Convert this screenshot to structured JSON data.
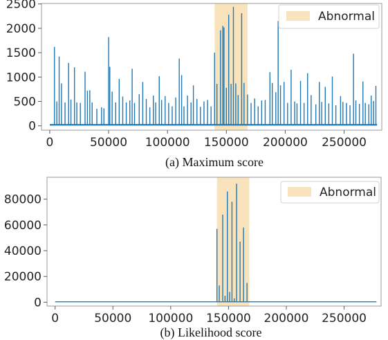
{
  "chart_data": [
    {
      "type": "line",
      "caption": "(a) Maximum score",
      "legend": {
        "label": "Abnormal",
        "placement": "top-right"
      },
      "abnormal_range": [
        140000,
        168000
      ],
      "xlim": [
        -7000,
        282000
      ],
      "ylim": [
        -90,
        2510
      ],
      "xticks": [
        {
          "value": 0,
          "label": "0"
        },
        {
          "value": 50000,
          "label": "50000"
        },
        {
          "value": 100000,
          "label": "100000"
        },
        {
          "value": 150000,
          "label": "150000"
        },
        {
          "value": 200000,
          "label": "200000"
        },
        {
          "value": 250000,
          "label": "250000"
        }
      ],
      "yticks": [
        {
          "value": 0,
          "label": "0"
        },
        {
          "value": 500,
          "label": "500"
        },
        {
          "value": 1000,
          "label": "1000"
        },
        {
          "value": 1500,
          "label": "1500"
        },
        {
          "value": 2000,
          "label": "2000"
        },
        {
          "value": 2500,
          "label": "2500"
        }
      ],
      "x_range": [
        0,
        278000
      ],
      "baseline": 20,
      "series": [
        {
          "color": "#1f77b4",
          "points": [
            [
              4000,
              1620
            ],
            [
              6000,
              500
            ],
            [
              8000,
              1420
            ],
            [
              10000,
              870
            ],
            [
              13000,
              480
            ],
            [
              16000,
              1290
            ],
            [
              18000,
              540
            ],
            [
              21000,
              1200
            ],
            [
              23000,
              480
            ],
            [
              26000,
              470
            ],
            [
              30000,
              1110
            ],
            [
              32000,
              720
            ],
            [
              34000,
              730
            ],
            [
              36000,
              480
            ],
            [
              40000,
              350
            ],
            [
              44000,
              380
            ],
            [
              46000,
              360
            ],
            [
              50000,
              1820
            ],
            [
              51000,
              1210
            ],
            [
              53000,
              700
            ],
            [
              56000,
              480
            ],
            [
              59000,
              960
            ],
            [
              62000,
              600
            ],
            [
              65000,
              480
            ],
            [
              68000,
              520
            ],
            [
              70000,
              1170
            ],
            [
              72000,
              470
            ],
            [
              76000,
              650
            ],
            [
              79000,
              900
            ],
            [
              82000,
              550
            ],
            [
              85000,
              380
            ],
            [
              88000,
              620
            ],
            [
              90000,
              480
            ],
            [
              93000,
              1020
            ],
            [
              95000,
              530
            ],
            [
              98000,
              610
            ],
            [
              101000,
              470
            ],
            [
              104000,
              400
            ],
            [
              107000,
              580
            ],
            [
              110000,
              1380
            ],
            [
              112000,
              1040
            ],
            [
              114000,
              400
            ],
            [
              117000,
              620
            ],
            [
              120000,
              480
            ],
            [
              122000,
              830
            ],
            [
              125000,
              550
            ],
            [
              128000,
              390
            ],
            [
              131000,
              500
            ],
            [
              134000,
              530
            ],
            [
              137000,
              400
            ],
            [
              140000,
              1500
            ],
            [
              142000,
              860
            ],
            [
              145000,
              1960
            ],
            [
              147000,
              2050
            ],
            [
              148000,
              2020
            ],
            [
              150000,
              780
            ],
            [
              152000,
              2280
            ],
            [
              154000,
              860
            ],
            [
              156000,
              2440
            ],
            [
              158000,
              870
            ],
            [
              160000,
              630
            ],
            [
              163000,
              2310
            ],
            [
              165000,
              880
            ],
            [
              168000,
              640
            ],
            [
              171000,
              470
            ],
            [
              174000,
              560
            ],
            [
              177000,
              400
            ],
            [
              180000,
              520
            ],
            [
              183000,
              530
            ],
            [
              187000,
              1100
            ],
            [
              189000,
              880
            ],
            [
              192000,
              690
            ],
            [
              194000,
              2150
            ],
            [
              196000,
              830
            ],
            [
              199000,
              900
            ],
            [
              202000,
              470
            ],
            [
              205000,
              1150
            ],
            [
              208000,
              500
            ],
            [
              210000,
              460
            ],
            [
              213000,
              920
            ],
            [
              216000,
              470
            ],
            [
              219000,
              1080
            ],
            [
              222000,
              630
            ],
            [
              226000,
              440
            ],
            [
              229000,
              900
            ],
            [
              231000,
              490
            ],
            [
              234000,
              800
            ],
            [
              237000,
              460
            ],
            [
              240000,
              1010
            ],
            [
              243000,
              420
            ],
            [
              247000,
              610
            ],
            [
              249000,
              490
            ],
            [
              252000,
              470
            ],
            [
              255000,
              420
            ],
            [
              258000,
              1480
            ],
            [
              260000,
              520
            ],
            [
              263000,
              450
            ],
            [
              266000,
              910
            ],
            [
              268000,
              470
            ],
            [
              271000,
              440
            ],
            [
              273000,
              620
            ],
            [
              275000,
              510
            ],
            [
              277000,
              820
            ]
          ]
        }
      ]
    },
    {
      "type": "line",
      "caption": "(b) Likelihood score",
      "legend": {
        "label": "Abnormal",
        "placement": "top-right"
      },
      "abnormal_range": [
        140000,
        168000
      ],
      "xlim": [
        -7000,
        282000
      ],
      "ylim": [
        -3000,
        97000
      ],
      "xticks": [
        {
          "value": 0,
          "label": "0"
        },
        {
          "value": 50000,
          "label": "50000"
        },
        {
          "value": 100000,
          "label": "100000"
        },
        {
          "value": 150000,
          "label": "150000"
        },
        {
          "value": 200000,
          "label": "200000"
        },
        {
          "value": 250000,
          "label": "250000"
        }
      ],
      "yticks": [
        {
          "value": 0,
          "label": "0"
        },
        {
          "value": 20000,
          "label": "20000"
        },
        {
          "value": 40000,
          "label": "40000"
        },
        {
          "value": 60000,
          "label": "60000"
        },
        {
          "value": 80000,
          "label": "80000"
        }
      ],
      "x_range": [
        0,
        278000
      ],
      "baseline": 300,
      "series": [
        {
          "color": "#1f77b4",
          "points": [
            [
              140000,
              57000
            ],
            [
              142000,
              13000
            ],
            [
              145000,
              68000
            ],
            [
              147000,
              5000
            ],
            [
              149000,
              86000
            ],
            [
              151000,
              8000
            ],
            [
              153000,
              78000
            ],
            [
              155000,
              3000
            ],
            [
              157000,
              92000
            ],
            [
              160000,
              47000
            ],
            [
              163000,
              58000
            ],
            [
              166000,
              15000
            ]
          ]
        }
      ]
    }
  ]
}
